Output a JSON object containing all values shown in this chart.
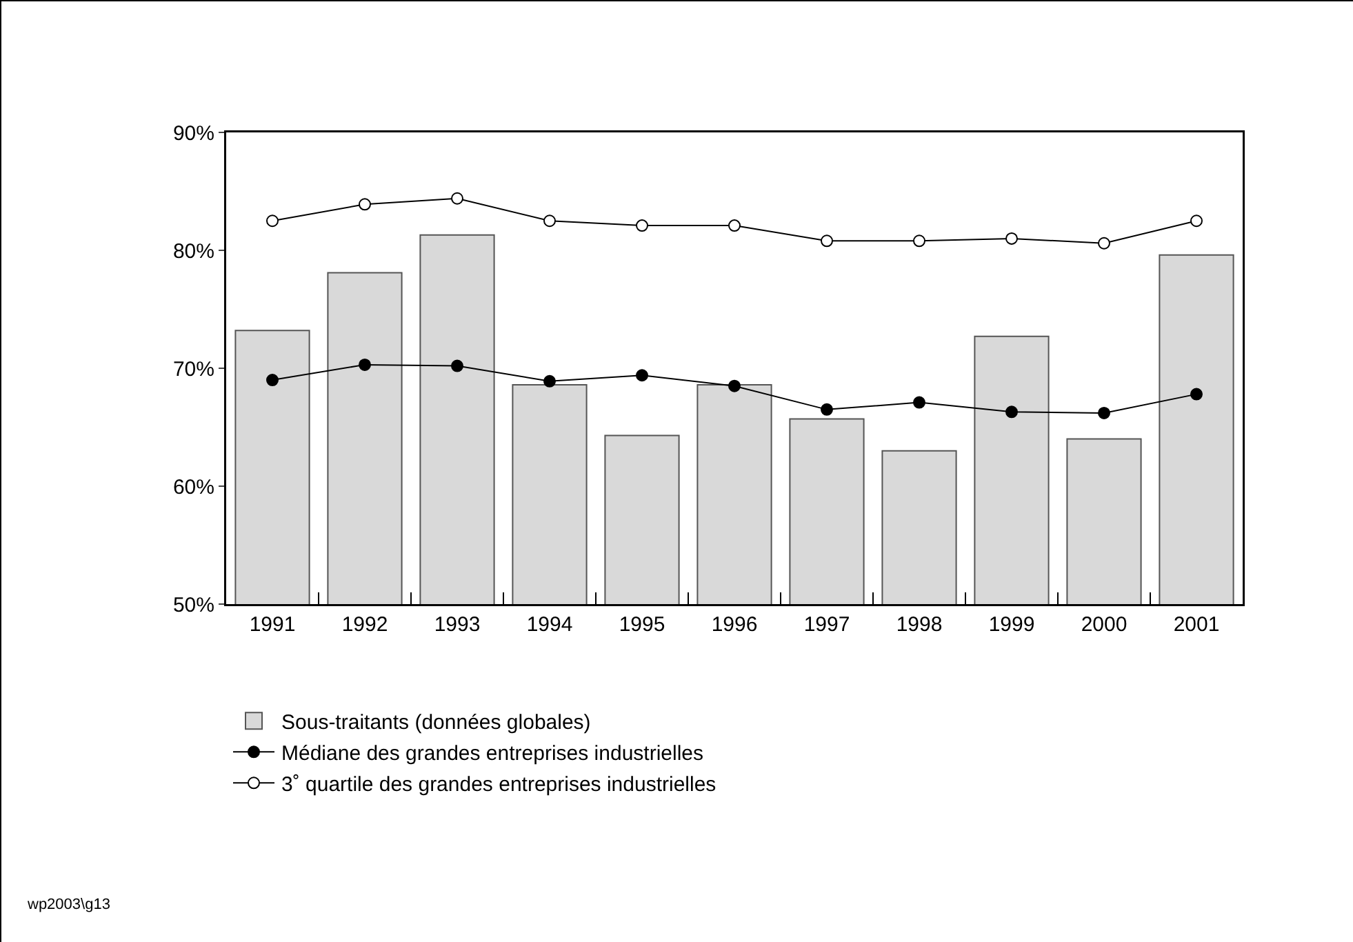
{
  "chart_data": {
    "type": "bar",
    "categories": [
      "1991",
      "1992",
      "1993",
      "1994",
      "1995",
      "1996",
      "1997",
      "1998",
      "1999",
      "2000",
      "2001"
    ],
    "series": [
      {
        "name": "Sous-traitants (données globales)",
        "color": "#d9d9d9",
        "values": [
          73.2,
          78.1,
          81.3,
          68.6,
          64.3,
          68.6,
          65.7,
          63.0,
          72.7,
          64.0,
          79.6
        ]
      },
      {
        "name": "Médiane des grandes entreprises industrielles",
        "type": "line",
        "color": "#000000",
        "marker": "circle",
        "values": [
          69.0,
          70.3,
          70.2,
          68.9,
          69.4,
          68.5,
          66.5,
          67.1,
          66.3,
          66.2,
          67.8
        ]
      },
      {
        "name": "3˚ quartile des grandes entreprises industrielles",
        "type": "line",
        "color": "#ffffff",
        "marker": "circle",
        "values": [
          82.5,
          83.9,
          84.4,
          82.5,
          82.1,
          82.1,
          80.8,
          80.8,
          81.0,
          80.6,
          82.5
        ]
      }
    ],
    "ylim": [
      50,
      90
    ],
    "yticks": [
      {
        "value": 50,
        "label": "50%"
      },
      {
        "value": 60,
        "label": "60%"
      },
      {
        "value": 70,
        "label": "70%"
      },
      {
        "value": 80,
        "label": "80%"
      },
      {
        "value": 90,
        "label": "90%"
      }
    ],
    "grid": false,
    "legend": "bottom left",
    "annotations": [
      "wp2003\\g13"
    ]
  }
}
